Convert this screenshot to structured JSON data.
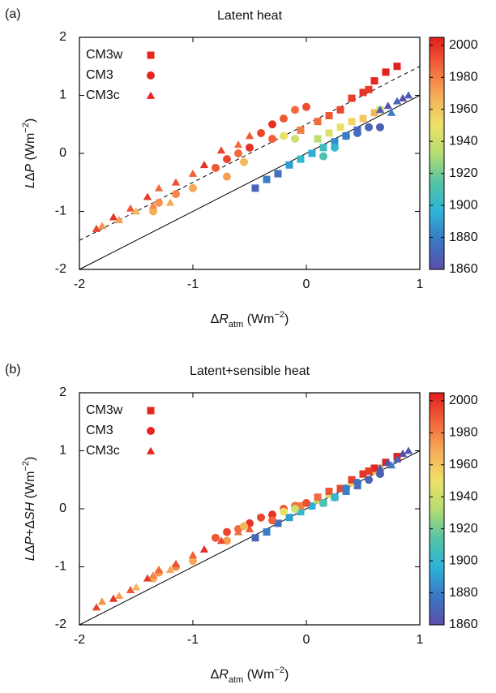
{
  "chart_data": [
    {
      "type": "scatter",
      "panel_label": "(a)",
      "title": "Latent heat",
      "xlabel": [
        {
          "text": "Δ"
        },
        {
          "text": "R",
          "style": "italic"
        },
        {
          "text": "atm",
          "style": "sub"
        },
        {
          "text": " (Wm"
        },
        {
          "text": "−2",
          "style": "sup"
        },
        {
          "text": ")"
        }
      ],
      "ylabel": [
        {
          "text": "L",
          "style": "italic"
        },
        {
          "text": "Δ"
        },
        {
          "text": "P",
          "style": "italic"
        },
        {
          "text": " (Wm"
        },
        {
          "text": "−2",
          "style": "sup"
        },
        {
          "text": ")"
        }
      ],
      "xlim": [
        -2,
        1
      ],
      "xticks": [
        -2,
        -1,
        0,
        1
      ],
      "ylim": [
        -2,
        2
      ],
      "yticks": [
        -2,
        -1,
        0,
        1,
        2
      ],
      "clim": [
        1860,
        2005
      ],
      "cticks": [
        1860,
        1880,
        1900,
        1920,
        1940,
        1960,
        1980,
        2000
      ],
      "colormap": [
        "#5b4ea8",
        "#3a78c4",
        "#2cb4d8",
        "#56c4a4",
        "#b6dd72",
        "#eee168",
        "#f7ac58",
        "#f2643a",
        "#e0201e"
      ],
      "legend": "upper left",
      "legend_color": "#e8261f",
      "lines": [
        {
          "slope": 1,
          "intercept": 0,
          "style": "solid"
        },
        {
          "slope": 1,
          "intercept": 0.5,
          "style": "dashed"
        }
      ],
      "series": [
        {
          "name": "CM3w",
          "marker": "square",
          "x": [
            -0.45,
            -0.35,
            -0.25,
            -0.15,
            -0.05,
            0.05,
            0.15,
            0.25,
            0.35,
            0.45,
            0.1,
            0.2,
            0.3,
            0.4,
            0.5,
            0.6,
            0.65,
            -0.05,
            0.1,
            0.2,
            0.3,
            0.4,
            0.5,
            0.6,
            0.7,
            0.8,
            0.55
          ],
          "values": [
            -0.6,
            -0.45,
            -0.35,
            -0.2,
            -0.1,
            0.0,
            0.1,
            0.2,
            0.3,
            0.4,
            0.25,
            0.35,
            0.45,
            0.55,
            0.6,
            0.7,
            0.75,
            0.4,
            0.55,
            0.65,
            0.75,
            0.95,
            1.05,
            1.25,
            1.4,
            1.5,
            1.1
          ],
          "c": [
            1870,
            1880,
            1875,
            1890,
            1900,
            1895,
            1905,
            1885,
            1880,
            1870,
            1935,
            1945,
            1950,
            1955,
            1960,
            1965,
            1940,
            1980,
            1985,
            1990,
            1995,
            1997,
            2000,
            2003,
            2005,
            2005,
            1998
          ]
        },
        {
          "name": "CM3",
          "marker": "circle",
          "x": [
            -0.8,
            -0.7,
            -0.6,
            -0.5,
            -0.4,
            -0.3,
            -0.2,
            -0.1,
            0.0,
            -0.3,
            -1.3,
            -1.15,
            -1.0,
            -0.7,
            -0.55,
            -1.35,
            -0.2,
            -0.1,
            0.35,
            0.45,
            0.55,
            0.65,
            0.25,
            0.15
          ],
          "values": [
            -0.25,
            -0.1,
            0.0,
            0.1,
            0.35,
            0.5,
            0.6,
            0.75,
            0.8,
            0.25,
            -0.85,
            -0.7,
            -0.6,
            -0.4,
            -0.15,
            -1.0,
            0.3,
            0.25,
            0.3,
            0.35,
            0.45,
            0.45,
            0.1,
            -0.05
          ],
          "c": [
            1990,
            1995,
            1985,
            2000,
            1995,
            2000,
            1990,
            1985,
            1992,
            1988,
            1975,
            1978,
            1970,
            1972,
            1965,
            1968,
            1950,
            1940,
            1880,
            1875,
            1870,
            1868,
            1900,
            1910
          ]
        },
        {
          "name": "CM3c",
          "marker": "triangle",
          "x": [
            -1.85,
            -1.7,
            -1.55,
            -1.4,
            -1.3,
            -1.15,
            -1.0,
            -0.9,
            -0.75,
            -0.6,
            -0.5,
            -1.8,
            -1.65,
            -1.5,
            -1.35,
            -1.2,
            0.65,
            0.72,
            0.8,
            0.85,
            0.9,
            0.75
          ],
          "values": [
            -1.3,
            -1.1,
            -0.95,
            -0.75,
            -0.6,
            -0.5,
            -0.35,
            -0.2,
            0.05,
            0.15,
            0.3,
            -1.25,
            -1.15,
            -1.0,
            -0.9,
            -0.85,
            0.75,
            0.82,
            0.9,
            0.95,
            1.0,
            0.7
          ],
          "c": [
            1995,
            2000,
            1990,
            1998,
            1985,
            1992,
            1988,
            2000,
            1995,
            1985,
            1990,
            1975,
            1972,
            1965,
            1978,
            1970,
            1865,
            1862,
            1870,
            1860,
            1866,
            1880
          ]
        }
      ]
    },
    {
      "type": "scatter",
      "panel_label": "(b)",
      "title": "Latent+sensible heat",
      "xlabel": [
        {
          "text": "Δ"
        },
        {
          "text": "R",
          "style": "italic"
        },
        {
          "text": "atm",
          "style": "sub"
        },
        {
          "text": " (Wm"
        },
        {
          "text": "−2",
          "style": "sup"
        },
        {
          "text": ")"
        }
      ],
      "ylabel": [
        {
          "text": "L",
          "style": "italic"
        },
        {
          "text": "Δ"
        },
        {
          "text": "P",
          "style": "italic"
        },
        {
          "text": "+Δ"
        },
        {
          "text": "SH",
          "style": "italic"
        },
        {
          "text": " (Wm"
        },
        {
          "text": "−2",
          "style": "sup"
        },
        {
          "text": ")"
        }
      ],
      "xlim": [
        -2,
        1
      ],
      "xticks": [
        -2,
        -1,
        0,
        1
      ],
      "ylim": [
        -2,
        2
      ],
      "yticks": [
        -2,
        -1,
        0,
        1,
        2
      ],
      "clim": [
        1860,
        2005
      ],
      "cticks": [
        1860,
        1880,
        1900,
        1920,
        1940,
        1960,
        1980,
        2000
      ],
      "colormap": [
        "#5b4ea8",
        "#3a78c4",
        "#2cb4d8",
        "#56c4a4",
        "#b6dd72",
        "#eee168",
        "#f7ac58",
        "#f2643a",
        "#e0201e"
      ],
      "legend": "upper left",
      "legend_color": "#e8261f",
      "lines": [
        {
          "slope": 1,
          "intercept": 0,
          "style": "solid"
        }
      ],
      "series": [
        {
          "name": "CM3w",
          "marker": "square",
          "x": [
            -0.45,
            -0.35,
            -0.25,
            -0.15,
            -0.05,
            0.05,
            0.15,
            0.25,
            0.35,
            0.45,
            0.1,
            0.2,
            0.3,
            0.4,
            0.5,
            0.6,
            0.65,
            -0.05,
            0.1,
            0.2,
            0.3,
            0.4,
            0.5,
            0.6,
            0.7,
            0.8,
            0.55
          ],
          "values": [
            -0.5,
            -0.4,
            -0.25,
            -0.15,
            -0.05,
            0.05,
            0.1,
            0.2,
            0.3,
            0.4,
            0.15,
            0.25,
            0.35,
            0.45,
            0.6,
            0.65,
            0.7,
            0.05,
            0.2,
            0.3,
            0.35,
            0.5,
            0.6,
            0.7,
            0.8,
            0.9,
            0.65
          ],
          "c": [
            1870,
            1880,
            1875,
            1890,
            1900,
            1895,
            1905,
            1885,
            1880,
            1870,
            1935,
            1945,
            1950,
            1955,
            1960,
            1965,
            1940,
            1980,
            1985,
            1990,
            1995,
            1997,
            2000,
            2003,
            2005,
            2005,
            1998
          ]
        },
        {
          "name": "CM3",
          "marker": "circle",
          "x": [
            -0.8,
            -0.7,
            -0.6,
            -0.5,
            -0.4,
            -0.3,
            -0.2,
            -0.1,
            0.0,
            -0.3,
            -1.3,
            -1.15,
            -1.0,
            -0.7,
            -0.55,
            -1.35,
            -0.2,
            -0.1,
            0.35,
            0.45,
            0.55,
            0.65,
            0.25,
            0.15
          ],
          "values": [
            -0.5,
            -0.4,
            -0.35,
            -0.25,
            -0.15,
            -0.1,
            0.0,
            0.05,
            0.1,
            -0.2,
            -1.1,
            -1.0,
            -0.9,
            -0.55,
            -0.3,
            -1.2,
            -0.05,
            0.0,
            0.35,
            0.45,
            0.5,
            0.6,
            0.2,
            0.1
          ],
          "c": [
            1990,
            1995,
            1985,
            2000,
            1995,
            2000,
            1990,
            1985,
            1992,
            1988,
            1975,
            1978,
            1970,
            1972,
            1965,
            1968,
            1950,
            1940,
            1880,
            1875,
            1870,
            1868,
            1900,
            1910
          ]
        },
        {
          "name": "CM3c",
          "marker": "triangle",
          "x": [
            -1.85,
            -1.7,
            -1.55,
            -1.4,
            -1.3,
            -1.15,
            -1.0,
            -0.9,
            -0.75,
            -0.6,
            -0.5,
            -1.8,
            -1.65,
            -1.5,
            -1.35,
            -1.2,
            0.65,
            0.72,
            0.8,
            0.85,
            0.9,
            0.75
          ],
          "values": [
            -1.7,
            -1.55,
            -1.4,
            -1.2,
            -1.05,
            -0.95,
            -0.8,
            -0.7,
            -0.55,
            -0.4,
            -0.35,
            -1.6,
            -1.5,
            -1.35,
            -1.15,
            -1.05,
            0.7,
            0.8,
            0.85,
            0.95,
            1.0,
            0.75
          ],
          "c": [
            1995,
            2000,
            1990,
            1998,
            1985,
            1992,
            1988,
            2000,
            1995,
            1985,
            1990,
            1975,
            1972,
            1965,
            1978,
            1970,
            1865,
            1862,
            1870,
            1860,
            1866,
            1880
          ]
        }
      ]
    }
  ]
}
